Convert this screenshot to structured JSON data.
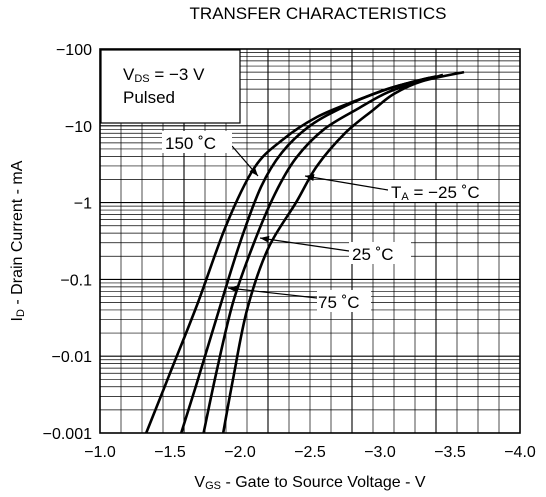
{
  "chart_data": {
    "type": "line",
    "title": "TRANSFER CHARACTERISTICS",
    "xlabel": {
      "main": "V",
      "sub": "GS",
      "rest": " - Gate to Source Voltage - V"
    },
    "ylabel": {
      "main": "I",
      "sub": "D",
      "rest": " - Drain Current - mA"
    },
    "x_ticks": [
      -1.0,
      -1.5,
      -2.0,
      -2.5,
      -3.0,
      -3.5,
      -4.0
    ],
    "x_tick_labels": [
      "−1.0",
      "−1.5",
      "−2.0",
      "−2.5",
      "−3.0",
      "−3.5",
      "−4.0"
    ],
    "y_ticks": [
      -0.001,
      -0.01,
      -0.1,
      -1,
      -10,
      -100
    ],
    "y_tick_labels": [
      "−0.001",
      "−0.01",
      "−0.1",
      "−1",
      "−10",
      "−100"
    ],
    "xlim": [
      -1.0,
      -4.0
    ],
    "ylim": [
      -0.001,
      -100
    ],
    "y_scale": "log",
    "grid": true,
    "conditions": {
      "line1_main": "V",
      "line1_sub": "DS",
      "line1_rest": " = −3 V",
      "line2": "Pulsed"
    },
    "series": [
      {
        "name": "150 ˚C",
        "x": [
          -1.33,
          -1.5,
          -1.7,
          -1.9,
          -2.1,
          -2.3,
          -2.55,
          -2.85,
          -3.1,
          -3.35
        ],
        "y": [
          -0.001,
          -0.006,
          -0.05,
          -0.5,
          -2.8,
          -6.5,
          -13,
          -22,
          -32,
          -42
        ]
      },
      {
        "name": "75 ˚C",
        "x": [
          -1.58,
          -1.7,
          -1.85,
          -2.0,
          -2.15,
          -2.3,
          -2.5,
          -2.75,
          -3.0,
          -3.2,
          -3.4
        ],
        "y": [
          -0.001,
          -0.005,
          -0.04,
          -0.3,
          -1.6,
          -4.5,
          -10,
          -18,
          -28,
          -36,
          -44
        ]
      },
      {
        "name": "25 ˚C",
        "x": [
          -1.74,
          -1.83,
          -1.95,
          -2.1,
          -2.25,
          -2.4,
          -2.6,
          -2.85,
          -3.05,
          -3.25,
          -3.45
        ],
        "y": [
          -0.001,
          -0.006,
          -0.05,
          -0.3,
          -1.3,
          -3.8,
          -9,
          -17,
          -27,
          -36,
          -46
        ]
      },
      {
        "name": "Tₐ = −25 ˚C",
        "x": [
          -1.88,
          -1.95,
          -2.05,
          -2.2,
          -2.4,
          -2.55,
          -2.75,
          -2.95,
          -3.1,
          -3.3,
          -3.6
        ],
        "y": [
          -0.001,
          -0.005,
          -0.04,
          -0.25,
          -1.0,
          -3.0,
          -8,
          -16,
          -26,
          -38,
          -50
        ]
      }
    ],
    "annotations": [
      {
        "text": "150 ˚C"
      },
      {
        "text_main": "T",
        "text_sub": "A",
        "text_rest": " = −25 ˚C"
      },
      {
        "text": "25 ˚C"
      },
      {
        "text": "75 ˚C"
      }
    ]
  }
}
